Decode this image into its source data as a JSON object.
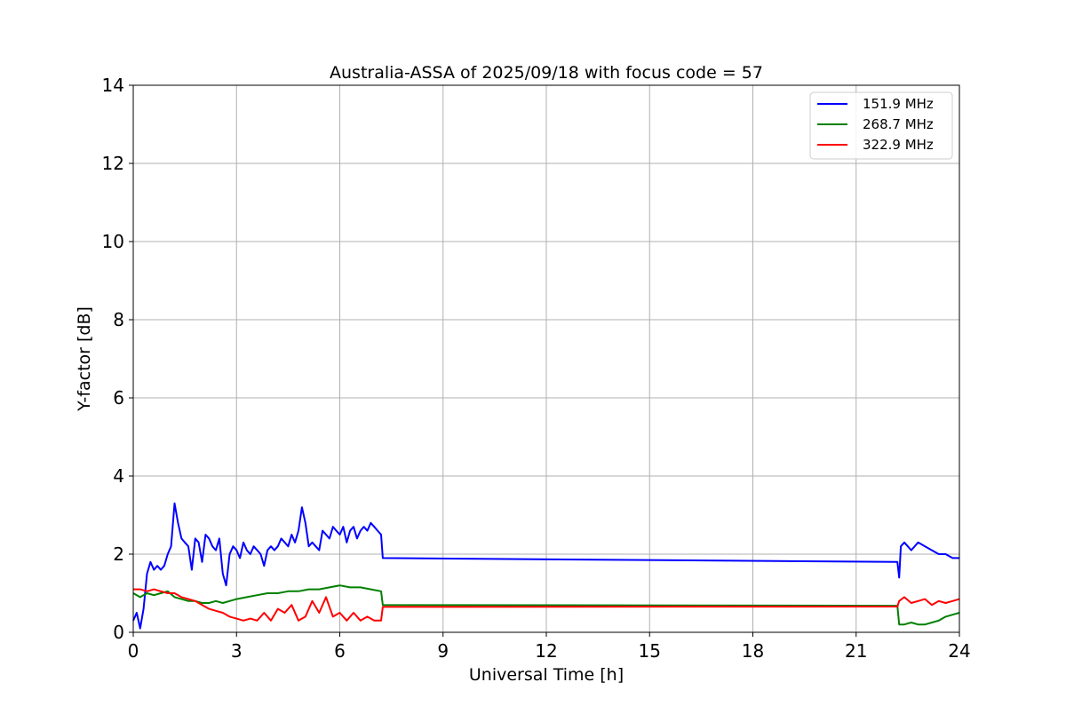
{
  "chart_data": {
    "type": "line",
    "title": "Australia-ASSA of 2025/09/18 with focus code = 57",
    "xlabel": "Universal Time [h]",
    "ylabel": "Y-factor [dB]",
    "xlim": [
      0,
      24
    ],
    "ylim": [
      0,
      14
    ],
    "xticks": [
      0,
      3,
      6,
      9,
      12,
      15,
      18,
      21,
      24
    ],
    "yticks": [
      0,
      2,
      4,
      6,
      8,
      10,
      12,
      14
    ],
    "grid": true,
    "legend_position": "top-right",
    "series": [
      {
        "name": "151.9 MHz",
        "color": "#0000ff",
        "x": [
          0,
          0.1,
          0.2,
          0.3,
          0.4,
          0.5,
          0.6,
          0.7,
          0.8,
          0.9,
          1.0,
          1.1,
          1.2,
          1.3,
          1.4,
          1.5,
          1.6,
          1.7,
          1.8,
          1.9,
          2.0,
          2.1,
          2.2,
          2.3,
          2.4,
          2.5,
          2.6,
          2.7,
          2.8,
          2.9,
          3.0,
          3.1,
          3.2,
          3.3,
          3.4,
          3.5,
          3.6,
          3.7,
          3.8,
          3.9,
          4.0,
          4.1,
          4.2,
          4.3,
          4.4,
          4.5,
          4.6,
          4.7,
          4.8,
          4.9,
          5.0,
          5.1,
          5.2,
          5.3,
          5.4,
          5.5,
          5.6,
          5.7,
          5.8,
          5.9,
          6.0,
          6.1,
          6.2,
          6.3,
          6.4,
          6.5,
          6.6,
          6.7,
          6.8,
          6.9,
          7.0,
          7.1,
          7.2,
          7.25,
          22.2,
          22.25,
          22.3,
          22.4,
          22.6,
          22.8,
          23.0,
          23.2,
          23.4,
          23.6,
          23.8,
          24.0
        ],
        "y": [
          0.3,
          0.5,
          0.1,
          0.6,
          1.5,
          1.8,
          1.6,
          1.7,
          1.6,
          1.7,
          2.0,
          2.2,
          3.3,
          2.8,
          2.4,
          2.3,
          2.2,
          1.6,
          2.4,
          2.3,
          1.8,
          2.5,
          2.4,
          2.2,
          2.1,
          2.4,
          1.5,
          1.2,
          2.0,
          2.2,
          2.1,
          1.9,
          2.3,
          2.1,
          2.0,
          2.2,
          2.1,
          2.0,
          1.7,
          2.1,
          2.2,
          2.1,
          2.2,
          2.4,
          2.3,
          2.2,
          2.5,
          2.3,
          2.6,
          3.2,
          2.8,
          2.2,
          2.3,
          2.2,
          2.1,
          2.6,
          2.5,
          2.4,
          2.7,
          2.6,
          2.5,
          2.7,
          2.3,
          2.6,
          2.7,
          2.4,
          2.6,
          2.7,
          2.6,
          2.8,
          2.7,
          2.6,
          2.5,
          1.9,
          1.8,
          1.4,
          2.2,
          2.3,
          2.1,
          2.3,
          2.2,
          2.1,
          2.0,
          2.0,
          1.9,
          1.9
        ]
      },
      {
        "name": "268.7 MHz",
        "color": "#008000",
        "x": [
          0,
          0.2,
          0.4,
          0.6,
          0.8,
          1.0,
          1.2,
          1.4,
          1.6,
          1.8,
          2.0,
          2.2,
          2.4,
          2.6,
          2.8,
          3.0,
          3.3,
          3.6,
          3.9,
          4.2,
          4.5,
          4.8,
          5.1,
          5.4,
          5.7,
          6.0,
          6.3,
          6.6,
          6.9,
          7.2,
          7.25,
          22.2,
          22.25,
          22.4,
          22.6,
          22.8,
          23.0,
          23.2,
          23.4,
          23.6,
          23.8,
          24.0
        ],
        "y": [
          1.0,
          0.9,
          1.0,
          0.95,
          1.0,
          1.05,
          0.9,
          0.85,
          0.8,
          0.8,
          0.75,
          0.75,
          0.8,
          0.75,
          0.8,
          0.85,
          0.9,
          0.95,
          1.0,
          1.0,
          1.05,
          1.05,
          1.1,
          1.1,
          1.15,
          1.2,
          1.15,
          1.15,
          1.1,
          1.05,
          0.7,
          0.68,
          0.2,
          0.2,
          0.25,
          0.2,
          0.2,
          0.25,
          0.3,
          0.4,
          0.45,
          0.5
        ]
      },
      {
        "name": "322.9 MHz",
        "color": "#ff0000",
        "x": [
          0,
          0.2,
          0.4,
          0.6,
          0.8,
          1.0,
          1.2,
          1.4,
          1.6,
          1.8,
          2.0,
          2.2,
          2.4,
          2.6,
          2.8,
          3.0,
          3.2,
          3.4,
          3.6,
          3.8,
          4.0,
          4.2,
          4.4,
          4.6,
          4.8,
          5.0,
          5.2,
          5.4,
          5.6,
          5.8,
          6.0,
          6.2,
          6.4,
          6.6,
          6.8,
          7.0,
          7.2,
          7.25,
          22.2,
          22.25,
          22.4,
          22.6,
          22.8,
          23.0,
          23.2,
          23.4,
          23.6,
          23.8,
          24.0
        ],
        "y": [
          1.1,
          1.1,
          1.05,
          1.1,
          1.05,
          1.0,
          1.0,
          0.9,
          0.85,
          0.8,
          0.7,
          0.6,
          0.55,
          0.5,
          0.4,
          0.35,
          0.3,
          0.35,
          0.3,
          0.5,
          0.3,
          0.6,
          0.5,
          0.7,
          0.3,
          0.4,
          0.8,
          0.5,
          0.9,
          0.4,
          0.5,
          0.3,
          0.5,
          0.3,
          0.4,
          0.3,
          0.3,
          0.65,
          0.66,
          0.8,
          0.9,
          0.75,
          0.8,
          0.85,
          0.7,
          0.8,
          0.75,
          0.8,
          0.85
        ]
      }
    ]
  }
}
